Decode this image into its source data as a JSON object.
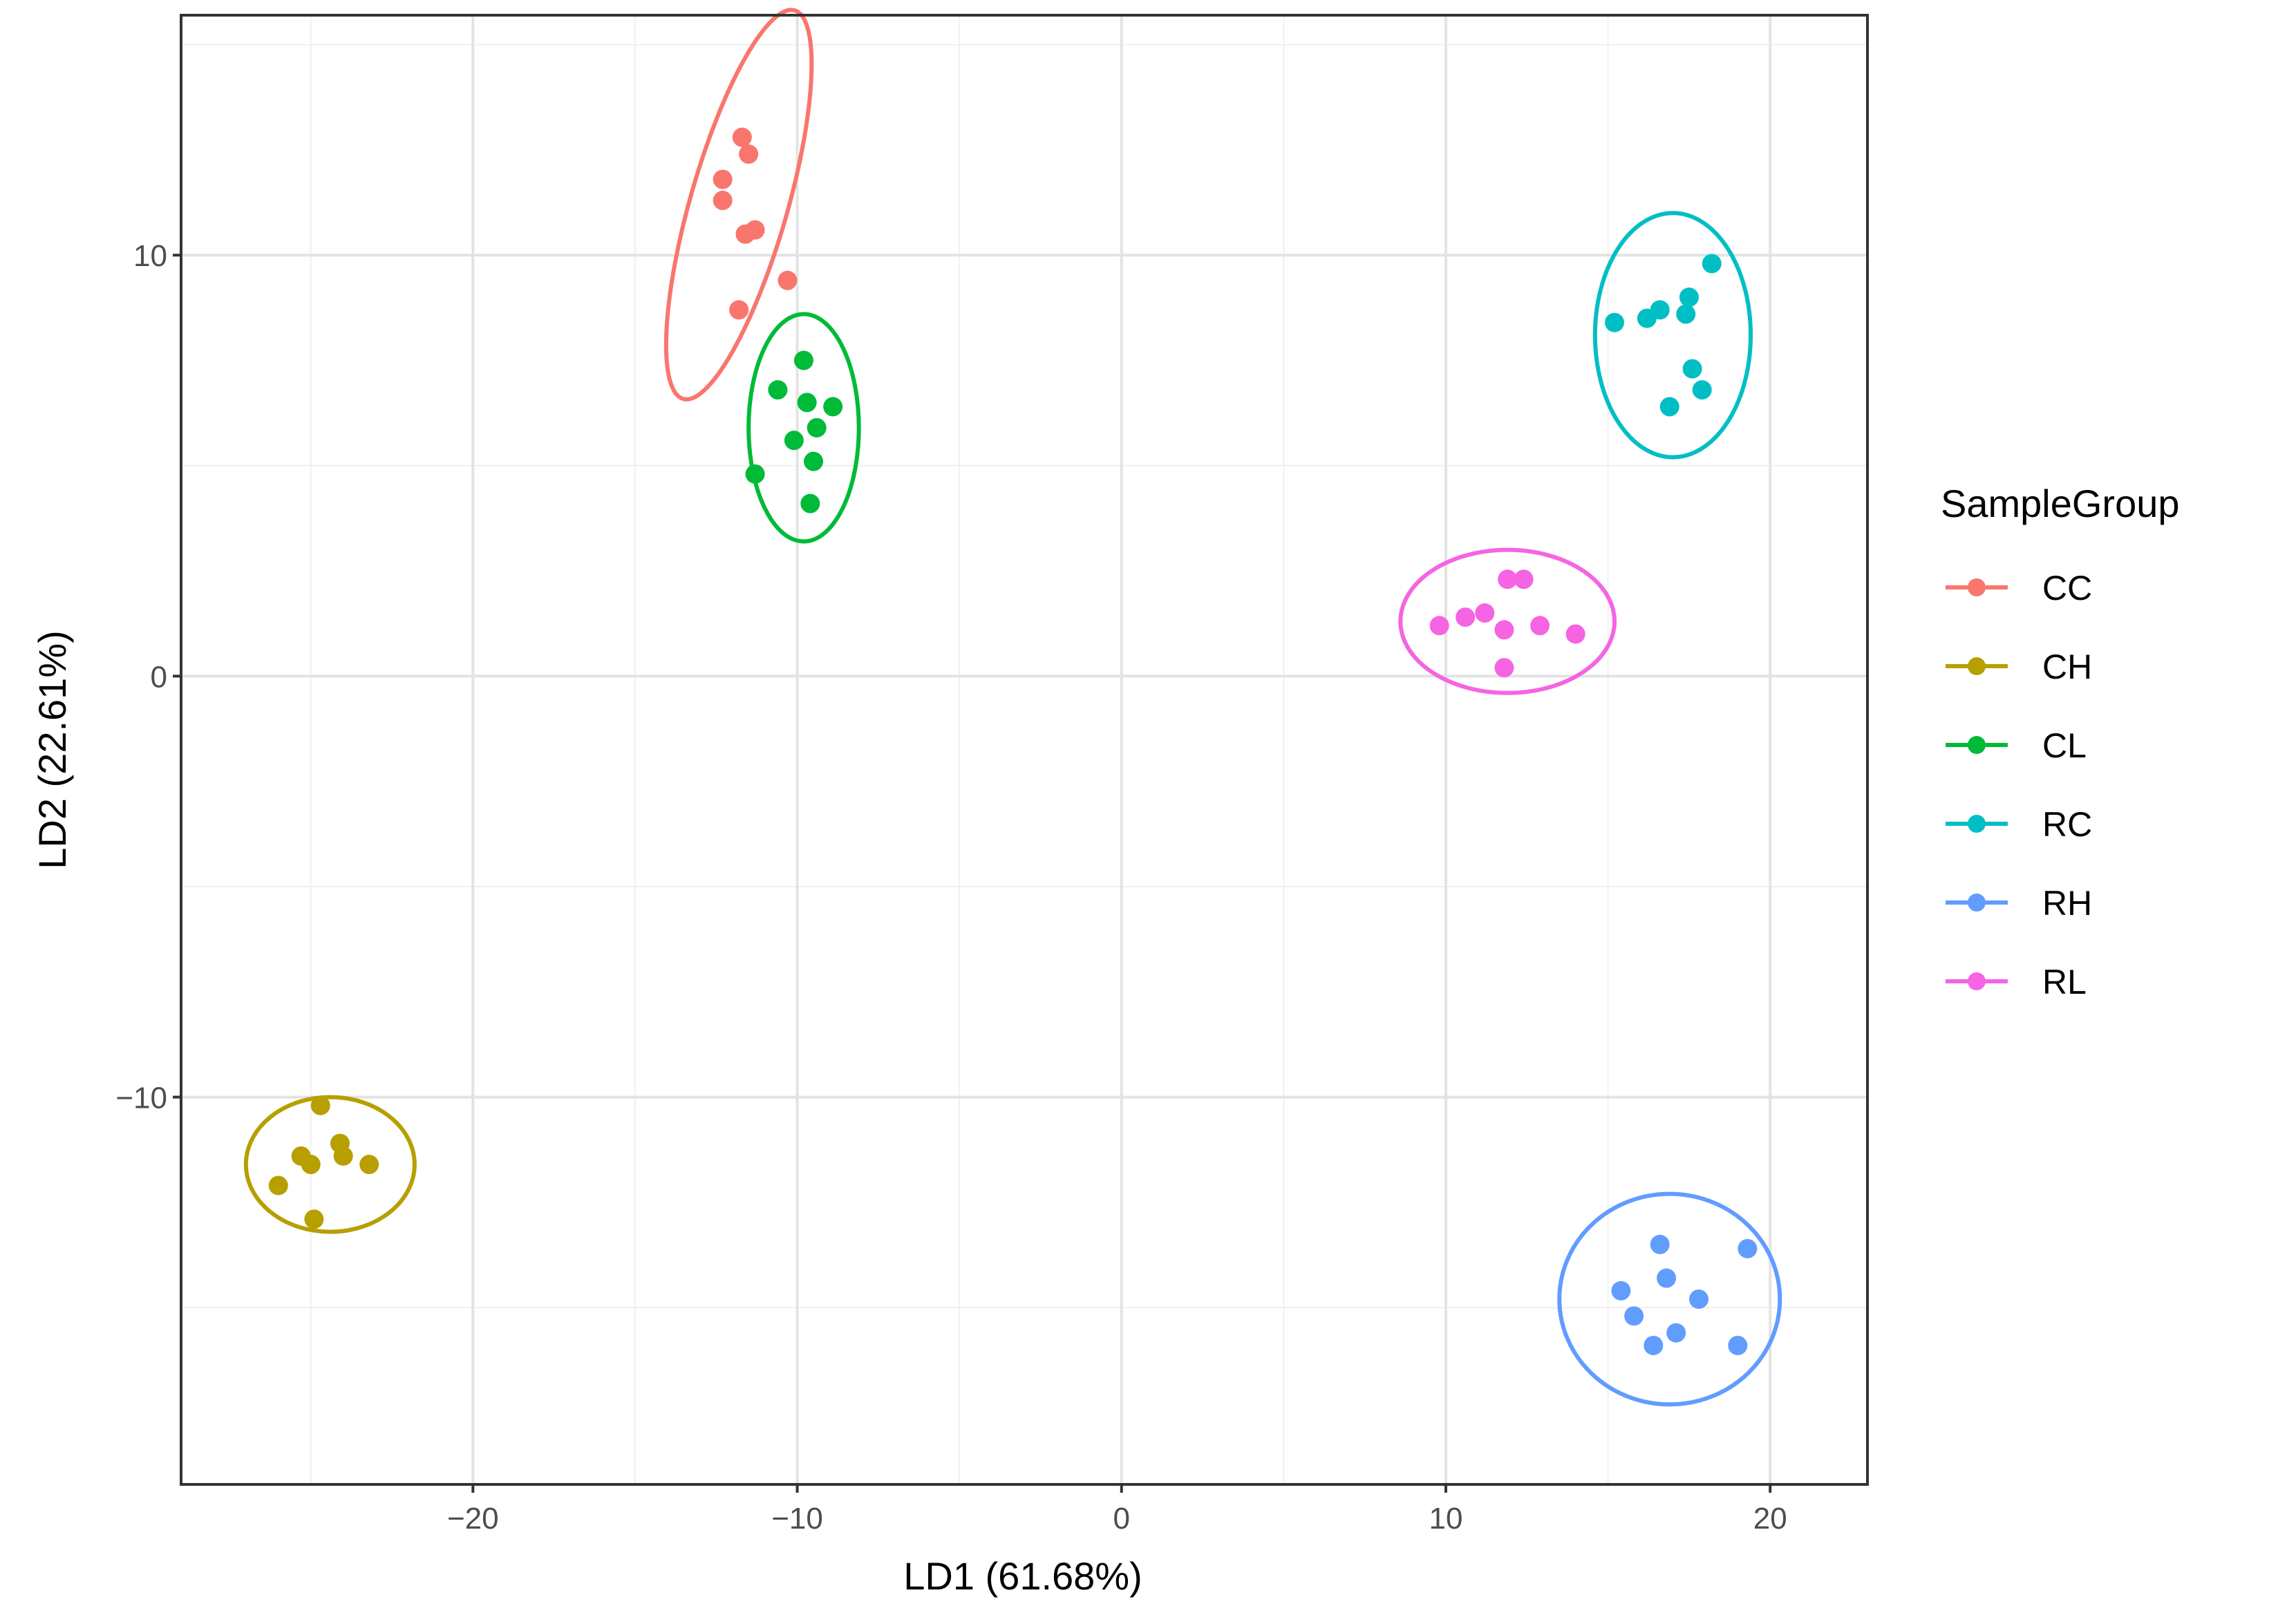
{
  "chart_data": {
    "type": "scatter",
    "xlabel": "LD1 (61.68%)",
    "ylabel": "LD2 (22.61%)",
    "xlim": [
      -29,
      23
    ],
    "ylim": [
      -19.2,
      15.7
    ],
    "x_ticks": [
      -20,
      -10,
      0,
      10,
      20
    ],
    "x_tick_labels": [
      "−20",
      "−10",
      "0",
      "10",
      "20"
    ],
    "y_ticks": [
      -10,
      0,
      10
    ],
    "y_tick_labels": [
      "−10",
      "0",
      "10"
    ],
    "grid": true,
    "legend": {
      "title": "SampleGroup",
      "position": "right"
    },
    "series": [
      {
        "name": "CC",
        "color": "#F8766D",
        "points": [
          [
            -11.7,
            12.8
          ],
          [
            -11.5,
            12.4
          ],
          [
            -12.3,
            11.8
          ],
          [
            -12.3,
            11.3
          ],
          [
            -11.6,
            10.5
          ],
          [
            -11.3,
            10.6
          ],
          [
            -10.3,
            9.4
          ],
          [
            -11.8,
            8.7
          ]
        ],
        "ellipse": {
          "cx": -11.8,
          "cy": 11.2,
          "rx": 1.5,
          "ry": 4.8,
          "angle_deg": 16
        }
      },
      {
        "name": "CH",
        "color": "#B79F00",
        "points": [
          [
            -24.7,
            -10.2
          ],
          [
            -25.3,
            -11.4
          ],
          [
            -25.0,
            -11.6
          ],
          [
            -24.1,
            -11.1
          ],
          [
            -24.0,
            -11.4
          ],
          [
            -23.2,
            -11.6
          ],
          [
            -26.0,
            -12.1
          ],
          [
            -24.9,
            -12.9
          ]
        ],
        "ellipse": {
          "cx": -24.4,
          "cy": -11.6,
          "rx": 2.6,
          "ry": 1.6,
          "angle_deg": 0
        }
      },
      {
        "name": "CL",
        "color": "#00BA38",
        "points": [
          [
            -9.8,
            7.5
          ],
          [
            -10.6,
            6.8
          ],
          [
            -9.7,
            6.5
          ],
          [
            -8.9,
            6.4
          ],
          [
            -9.4,
            5.9
          ],
          [
            -10.1,
            5.6
          ],
          [
            -9.5,
            5.1
          ],
          [
            -11.3,
            4.8
          ],
          [
            -9.6,
            4.1
          ]
        ],
        "ellipse": {
          "cx": -9.8,
          "cy": 5.9,
          "rx": 1.7,
          "ry": 2.7,
          "angle_deg": 0
        }
      },
      {
        "name": "RC",
        "color": "#00BFC4",
        "points": [
          [
            18.2,
            9.8
          ],
          [
            17.5,
            9.0
          ],
          [
            17.4,
            8.6
          ],
          [
            16.6,
            8.7
          ],
          [
            16.2,
            8.5
          ],
          [
            15.2,
            8.4
          ],
          [
            17.6,
            7.3
          ],
          [
            17.9,
            6.8
          ],
          [
            16.9,
            6.4
          ]
        ],
        "ellipse": {
          "cx": 17.0,
          "cy": 8.1,
          "rx": 2.4,
          "ry": 2.9,
          "angle_deg": 0
        }
      },
      {
        "name": "RH",
        "color": "#619CFF",
        "points": [
          [
            16.6,
            -13.5
          ],
          [
            19.3,
            -13.6
          ],
          [
            16.8,
            -14.3
          ],
          [
            15.4,
            -14.6
          ],
          [
            17.8,
            -14.8
          ],
          [
            15.8,
            -15.2
          ],
          [
            17.1,
            -15.6
          ],
          [
            16.4,
            -15.9
          ],
          [
            19.0,
            -15.9
          ]
        ],
        "ellipse": {
          "cx": 16.9,
          "cy": -14.8,
          "rx": 3.4,
          "ry": 2.5,
          "angle_deg": 0
        }
      },
      {
        "name": "RL",
        "color": "#F564E3",
        "points": [
          [
            11.9,
            2.3
          ],
          [
            12.4,
            2.3
          ],
          [
            10.6,
            1.4
          ],
          [
            11.2,
            1.5
          ],
          [
            9.8,
            1.2
          ],
          [
            11.8,
            1.1
          ],
          [
            12.9,
            1.2
          ],
          [
            14.0,
            1.0
          ],
          [
            11.8,
            0.2
          ]
        ],
        "ellipse": {
          "cx": 11.9,
          "cy": 1.3,
          "rx": 3.3,
          "ry": 1.7,
          "angle_deg": 0
        }
      }
    ]
  }
}
